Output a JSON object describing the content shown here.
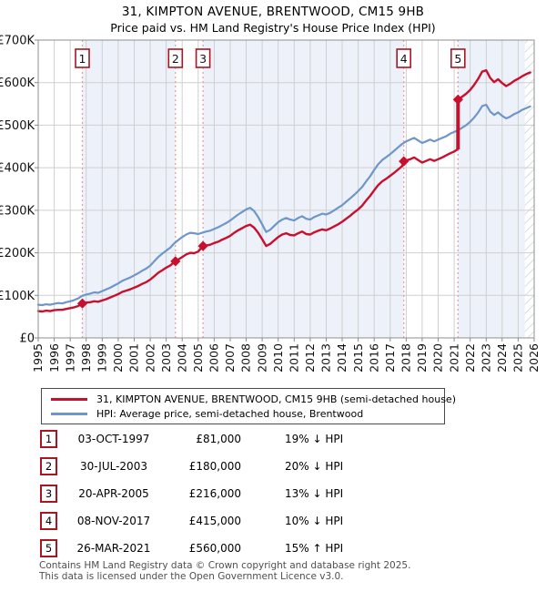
{
  "title": "31, KIMPTON AVENUE, BRENTWOOD, CM15 9HB",
  "subtitle": "Price paid vs. HM Land Registry's House Price Index (HPI)",
  "legend": [
    {
      "label": "31, KIMPTON AVENUE, BRENTWOOD, CM15 9HB (semi-detached house)",
      "color": "#c8102e"
    },
    {
      "label": "HPI: Average price, semi-detached house, Brentwood",
      "color": "#6e96c8"
    }
  ],
  "sales_table": [
    {
      "num": "1",
      "date": "03-OCT-1997",
      "price": "£81,000",
      "hpi": "19% ↓ HPI"
    },
    {
      "num": "2",
      "date": "30-JUL-2003",
      "price": "£180,000",
      "hpi": "20% ↓ HPI"
    },
    {
      "num": "3",
      "date": "20-APR-2005",
      "price": "£216,000",
      "hpi": "13% ↓ HPI"
    },
    {
      "num": "4",
      "date": "08-NOV-2017",
      "price": "£415,000",
      "hpi": "10% ↓ HPI"
    },
    {
      "num": "5",
      "date": "26-MAR-2021",
      "price": "£560,000",
      "hpi": "15% ↑ HPI"
    }
  ],
  "footer": {
    "line1": "Contains HM Land Registry data © Crown copyright and database right 2025.",
    "line2": "This data is licensed under the Open Government Licence v3.0."
  },
  "colors": {
    "price_line": "#c8102e",
    "hpi_line": "#6e96c8",
    "sale_dash": "#f09595",
    "grid": "#cfcfcf",
    "band": "#edf1fa",
    "plot_border": "#8f8f8f",
    "marker_box_border": "#a81621",
    "hatch": "#c5cad2"
  },
  "chart_data": {
    "type": "line",
    "title": "31, KIMPTON AVENUE, BRENTWOOD, CM15 9HB — Price paid vs. HPI",
    "x_axis": {
      "start": 1995,
      "end": 2026,
      "tick_labels": [
        "1995",
        "1996",
        "1997",
        "1998",
        "1999",
        "2000",
        "2001",
        "2002",
        "2003",
        "2004",
        "2005",
        "2006",
        "2007",
        "2008",
        "2009",
        "2010",
        "2011",
        "2012",
        "2013",
        "2014",
        "2015",
        "2016",
        "2017",
        "2018",
        "2019",
        "2020",
        "2021",
        "2022",
        "2023",
        "2024",
        "2025",
        "2026"
      ]
    },
    "y_axis": {
      "min_k": 0,
      "max_k": 700,
      "ticks_k": [
        0,
        100,
        200,
        300,
        400,
        500,
        600,
        700
      ],
      "tick_labels": [
        "£0",
        "£100K",
        "£200K",
        "£300K",
        "£400K",
        "£500K",
        "£600K",
        "£700K"
      ]
    },
    "ownership_bands": [
      [
        1997.76,
        2003.58
      ],
      [
        2005.3,
        2017.85
      ],
      [
        2021.24,
        2025.42
      ]
    ],
    "future_hatch": [
      2025.42,
      2026
    ],
    "sales": [
      {
        "n": "1",
        "year": 1997.76,
        "price_k": 81
      },
      {
        "n": "2",
        "year": 2003.58,
        "price_k": 180
      },
      {
        "n": "3",
        "year": 2005.3,
        "price_k": 216
      },
      {
        "n": "4",
        "year": 2017.85,
        "price_k": 415
      },
      {
        "n": "5",
        "year": 2021.24,
        "price_k": 560,
        "jump_from_k": 443
      }
    ],
    "series": [
      {
        "name": "HPI: Average price, semi-detached house, Brentwood",
        "color": "#6e96c8",
        "points": [
          [
            1995,
            78
          ],
          [
            1995.25,
            77
          ],
          [
            1995.5,
            79
          ],
          [
            1995.75,
            78
          ],
          [
            1996,
            80
          ],
          [
            1996.25,
            82
          ],
          [
            1996.5,
            81
          ],
          [
            1996.75,
            84
          ],
          [
            1997,
            86
          ],
          [
            1997.25,
            89
          ],
          [
            1997.5,
            93
          ],
          [
            1997.75,
            99
          ],
          [
            1998,
            102
          ],
          [
            1998.25,
            104
          ],
          [
            1998.5,
            107
          ],
          [
            1998.75,
            106
          ],
          [
            1999,
            110
          ],
          [
            1999.25,
            114
          ],
          [
            1999.5,
            118
          ],
          [
            1999.75,
            123
          ],
          [
            2000,
            128
          ],
          [
            2000.25,
            134
          ],
          [
            2000.5,
            138
          ],
          [
            2000.75,
            142
          ],
          [
            2001,
            147
          ],
          [
            2001.25,
            152
          ],
          [
            2001.5,
            158
          ],
          [
            2001.75,
            163
          ],
          [
            2002,
            170
          ],
          [
            2002.25,
            180
          ],
          [
            2002.5,
            190
          ],
          [
            2002.75,
            198
          ],
          [
            2003,
            205
          ],
          [
            2003.25,
            212
          ],
          [
            2003.5,
            222
          ],
          [
            2003.75,
            230
          ],
          [
            2004,
            237
          ],
          [
            2004.25,
            243
          ],
          [
            2004.5,
            247
          ],
          [
            2004.75,
            246
          ],
          [
            2005,
            244
          ],
          [
            2005.25,
            247
          ],
          [
            2005.5,
            250
          ],
          [
            2005.75,
            252
          ],
          [
            2006,
            256
          ],
          [
            2006.25,
            260
          ],
          [
            2006.5,
            265
          ],
          [
            2006.75,
            270
          ],
          [
            2007,
            276
          ],
          [
            2007.25,
            283
          ],
          [
            2007.5,
            290
          ],
          [
            2007.75,
            296
          ],
          [
            2008,
            302
          ],
          [
            2008.25,
            306
          ],
          [
            2008.5,
            298
          ],
          [
            2008.75,
            284
          ],
          [
            2009,
            267
          ],
          [
            2009.25,
            249
          ],
          [
            2009.5,
            254
          ],
          [
            2009.75,
            263
          ],
          [
            2010,
            272
          ],
          [
            2010.25,
            278
          ],
          [
            2010.5,
            282
          ],
          [
            2010.75,
            278
          ],
          [
            2011,
            276
          ],
          [
            2011.25,
            282
          ],
          [
            2011.5,
            286
          ],
          [
            2011.75,
            280
          ],
          [
            2012,
            278
          ],
          [
            2012.25,
            284
          ],
          [
            2012.5,
            288
          ],
          [
            2012.75,
            292
          ],
          [
            2013,
            290
          ],
          [
            2013.25,
            294
          ],
          [
            2013.5,
            300
          ],
          [
            2013.75,
            306
          ],
          [
            2014,
            312
          ],
          [
            2014.25,
            320
          ],
          [
            2014.5,
            328
          ],
          [
            2014.75,
            336
          ],
          [
            2015,
            345
          ],
          [
            2015.25,
            355
          ],
          [
            2015.5,
            368
          ],
          [
            2015.75,
            380
          ],
          [
            2016,
            395
          ],
          [
            2016.25,
            408
          ],
          [
            2016.5,
            418
          ],
          [
            2016.75,
            425
          ],
          [
            2017,
            432
          ],
          [
            2017.25,
            440
          ],
          [
            2017.5,
            448
          ],
          [
            2017.75,
            456
          ],
          [
            2018,
            462
          ],
          [
            2018.25,
            466
          ],
          [
            2018.5,
            470
          ],
          [
            2018.75,
            464
          ],
          [
            2019,
            458
          ],
          [
            2019.25,
            462
          ],
          [
            2019.5,
            466
          ],
          [
            2019.75,
            462
          ],
          [
            2020,
            466
          ],
          [
            2020.25,
            470
          ],
          [
            2020.5,
            474
          ],
          [
            2020.75,
            480
          ],
          [
            2021,
            484
          ],
          [
            2021.25,
            488
          ],
          [
            2021.5,
            494
          ],
          [
            2021.75,
            500
          ],
          [
            2022,
            508
          ],
          [
            2022.25,
            518
          ],
          [
            2022.5,
            530
          ],
          [
            2022.75,
            545
          ],
          [
            2023,
            548
          ],
          [
            2023.25,
            532
          ],
          [
            2023.5,
            524
          ],
          [
            2023.75,
            530
          ],
          [
            2024,
            522
          ],
          [
            2024.25,
            516
          ],
          [
            2024.5,
            520
          ],
          [
            2024.75,
            526
          ],
          [
            2025,
            530
          ],
          [
            2025.25,
            536
          ],
          [
            2025.5,
            540
          ],
          [
            2025.75,
            544
          ]
        ]
      },
      {
        "name": "31, KIMPTON AVENUE, BRENTWOOD, CM15 9HB (semi-detached house)",
        "color": "#c8102e",
        "points": [
          [
            1995,
            63
          ],
          [
            1995.25,
            62
          ],
          [
            1995.5,
            64
          ],
          [
            1995.75,
            63
          ],
          [
            1996,
            65
          ],
          [
            1996.25,
            66
          ],
          [
            1996.5,
            66
          ],
          [
            1996.75,
            68
          ],
          [
            1997,
            70
          ],
          [
            1997.25,
            72
          ],
          [
            1997.5,
            75
          ],
          [
            1997.75,
            81
          ],
          [
            1998,
            83
          ],
          [
            1998.25,
            84
          ],
          [
            1998.5,
            86
          ],
          [
            1998.75,
            85
          ],
          [
            1999,
            88
          ],
          [
            1999.25,
            91
          ],
          [
            1999.5,
            95
          ],
          [
            1999.75,
            99
          ],
          [
            2000,
            103
          ],
          [
            2000.25,
            108
          ],
          [
            2000.5,
            111
          ],
          [
            2000.75,
            114
          ],
          [
            2001,
            118
          ],
          [
            2001.25,
            122
          ],
          [
            2001.5,
            127
          ],
          [
            2001.75,
            131
          ],
          [
            2002,
            137
          ],
          [
            2002.25,
            145
          ],
          [
            2002.5,
            153
          ],
          [
            2002.75,
            159
          ],
          [
            2003,
            165
          ],
          [
            2003.25,
            170
          ],
          [
            2003.5,
            178
          ],
          [
            2003.75,
            184
          ],
          [
            2004,
            190
          ],
          [
            2004.25,
            196
          ],
          [
            2004.5,
            200
          ],
          [
            2004.75,
            199
          ],
          [
            2005,
            203
          ],
          [
            2005.25,
            214
          ],
          [
            2005.5,
            217
          ],
          [
            2005.75,
            219
          ],
          [
            2006,
            223
          ],
          [
            2006.25,
            226
          ],
          [
            2006.5,
            231
          ],
          [
            2006.75,
            235
          ],
          [
            2007,
            240
          ],
          [
            2007.25,
            247
          ],
          [
            2007.5,
            253
          ],
          [
            2007.75,
            258
          ],
          [
            2008,
            263
          ],
          [
            2008.25,
            266
          ],
          [
            2008.5,
            259
          ],
          [
            2008.75,
            247
          ],
          [
            2009,
            232
          ],
          [
            2009.25,
            216
          ],
          [
            2009.5,
            221
          ],
          [
            2009.75,
            229
          ],
          [
            2010,
            237
          ],
          [
            2010.25,
            243
          ],
          [
            2010.5,
            246
          ],
          [
            2010.75,
            242
          ],
          [
            2011,
            241
          ],
          [
            2011.25,
            246
          ],
          [
            2011.5,
            250
          ],
          [
            2011.75,
            244
          ],
          [
            2012,
            243
          ],
          [
            2012.25,
            248
          ],
          [
            2012.5,
            252
          ],
          [
            2012.75,
            255
          ],
          [
            2013,
            253
          ],
          [
            2013.25,
            257
          ],
          [
            2013.5,
            262
          ],
          [
            2013.75,
            267
          ],
          [
            2014,
            273
          ],
          [
            2014.25,
            280
          ],
          [
            2014.5,
            287
          ],
          [
            2014.75,
            295
          ],
          [
            2015,
            302
          ],
          [
            2015.25,
            311
          ],
          [
            2015.5,
            323
          ],
          [
            2015.75,
            334
          ],
          [
            2016,
            347
          ],
          [
            2016.25,
            359
          ],
          [
            2016.5,
            368
          ],
          [
            2016.75,
            374
          ],
          [
            2017,
            381
          ],
          [
            2017.25,
            388
          ],
          [
            2017.5,
            396
          ],
          [
            2017.75,
            404
          ],
          [
            2017.85,
            415
          ],
          [
            2018,
            417
          ],
          [
            2018.25,
            420
          ],
          [
            2018.5,
            424
          ],
          [
            2018.75,
            418
          ],
          [
            2019,
            412
          ],
          [
            2019.25,
            416
          ],
          [
            2019.5,
            420
          ],
          [
            2019.75,
            416
          ],
          [
            2020,
            420
          ],
          [
            2020.25,
            424
          ],
          [
            2020.5,
            429
          ],
          [
            2020.75,
            434
          ],
          [
            2021,
            438
          ],
          [
            2021.2,
            443
          ],
          [
            2021.24,
            560
          ],
          [
            2021.5,
            567
          ],
          [
            2021.75,
            574
          ],
          [
            2022,
            583
          ],
          [
            2022.25,
            595
          ],
          [
            2022.5,
            609
          ],
          [
            2022.75,
            626
          ],
          [
            2023,
            629
          ],
          [
            2023.25,
            611
          ],
          [
            2023.5,
            601
          ],
          [
            2023.75,
            608
          ],
          [
            2024,
            599
          ],
          [
            2024.25,
            592
          ],
          [
            2024.5,
            597
          ],
          [
            2024.75,
            604
          ],
          [
            2025,
            609
          ],
          [
            2025.25,
            615
          ],
          [
            2025.5,
            620
          ],
          [
            2025.75,
            624
          ]
        ]
      }
    ]
  }
}
